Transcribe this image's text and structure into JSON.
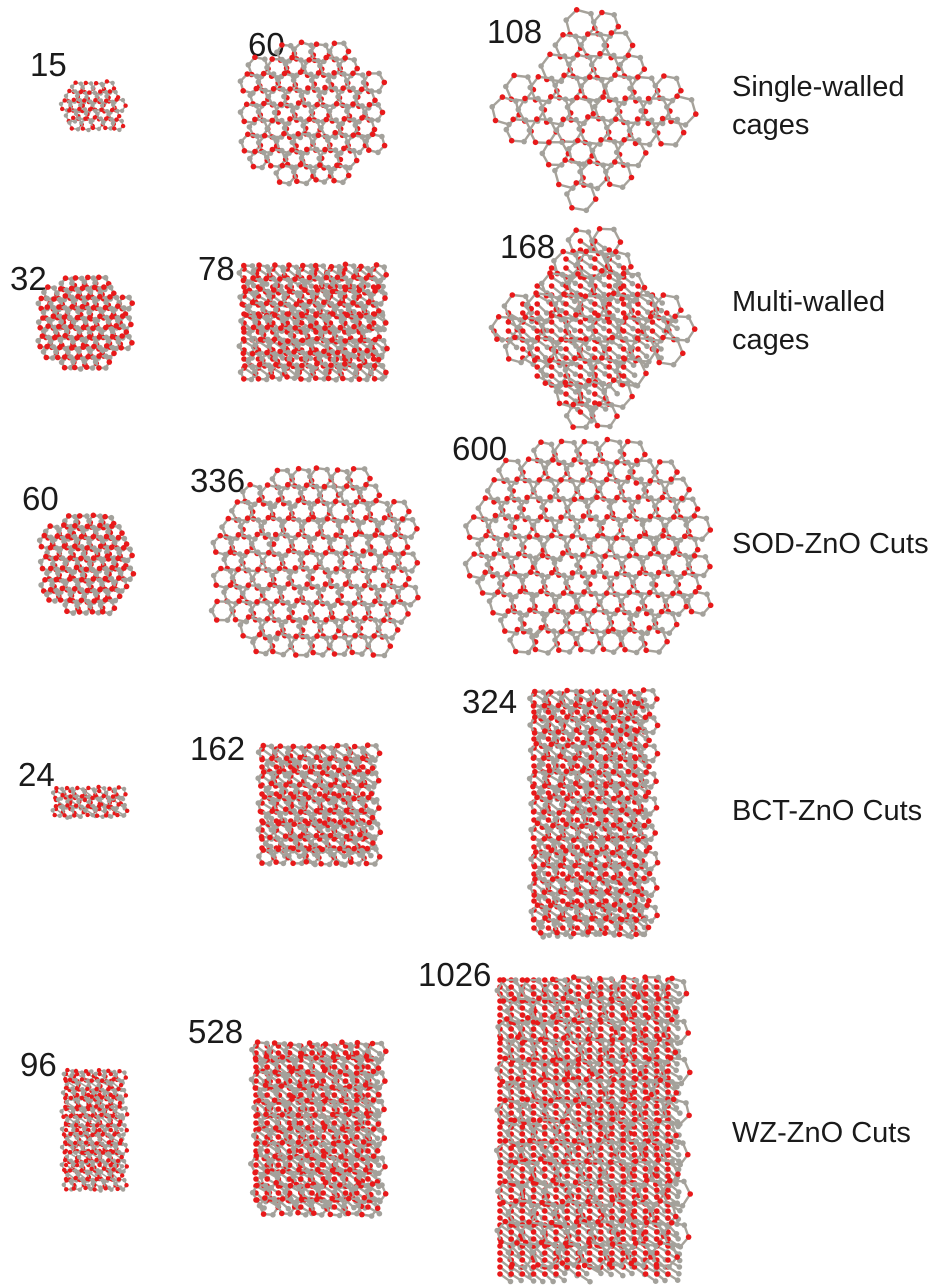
{
  "rows": [
    {
      "label_lines": [
        "Single-walled",
        "cages"
      ],
      "clusters": [
        {
          "size": "15",
          "kind": "cage",
          "diag": false
        },
        {
          "size": "60",
          "kind": "cage",
          "diag": false
        },
        {
          "size": "108",
          "kind": "cage",
          "diag": true
        }
      ]
    },
    {
      "label_lines": [
        "Multi-walled",
        "cages"
      ],
      "clusters": [
        {
          "size": "32",
          "kind": "cage",
          "diag": false
        },
        {
          "size": "78",
          "kind": "multi",
          "diag": false
        },
        {
          "size": "168",
          "kind": "multi",
          "diag": true
        }
      ]
    },
    {
      "label_lines": [
        "SOD-ZnO Cuts"
      ],
      "clusters": [
        {
          "size": "60",
          "kind": "sod",
          "diag": false
        },
        {
          "size": "336",
          "kind": "sod",
          "diag": false
        },
        {
          "size": "600",
          "kind": "sod",
          "diag": false
        }
      ]
    },
    {
      "label_lines": [
        "BCT-ZnO Cuts"
      ],
      "clusters": [
        {
          "size": "24",
          "kind": "bct",
          "diag": false
        },
        {
          "size": "162",
          "kind": "bct",
          "diag": false
        },
        {
          "size": "324",
          "kind": "bct",
          "diag": false
        }
      ]
    },
    {
      "label_lines": [
        "WZ-ZnO Cuts"
      ],
      "clusters": [
        {
          "size": "96",
          "kind": "wz",
          "diag": false
        },
        {
          "size": "528",
          "kind": "wz",
          "diag": false
        },
        {
          "size": "1026",
          "kind": "wz",
          "diag": false
        }
      ]
    }
  ],
  "colors": {
    "oxygen_atom": "#e8191a",
    "zinc_atom": "#a3a19b",
    "bond": "#a6a29a"
  }
}
